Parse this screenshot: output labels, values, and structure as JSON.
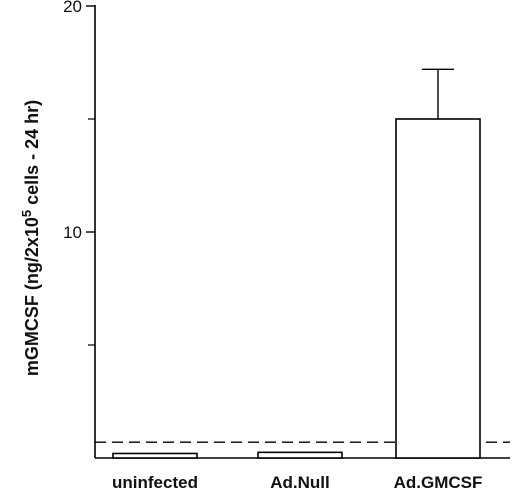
{
  "chart_data": {
    "type": "bar",
    "categories": [
      "uninfected",
      "Ad.Null",
      "Ad.GMCSF"
    ],
    "values": [
      0.2,
      0.25,
      15.0
    ],
    "errors": [
      0,
      0,
      2.2
    ],
    "ylabel": {
      "prefix": "mGMCSF (ng/2x10",
      "superscript": "5",
      "suffix": " cells - 24 hr)"
    },
    "ylim": [
      0,
      20
    ],
    "yticks_major": [
      {
        "value": 10,
        "label": "10"
      },
      {
        "value": 20,
        "label": "20"
      }
    ],
    "yticks_minor": [
      5,
      15
    ],
    "dashed_threshold": 0.7,
    "grid": false,
    "colors": {
      "bar_fill": "#ffffff",
      "stroke": "#000000"
    }
  }
}
